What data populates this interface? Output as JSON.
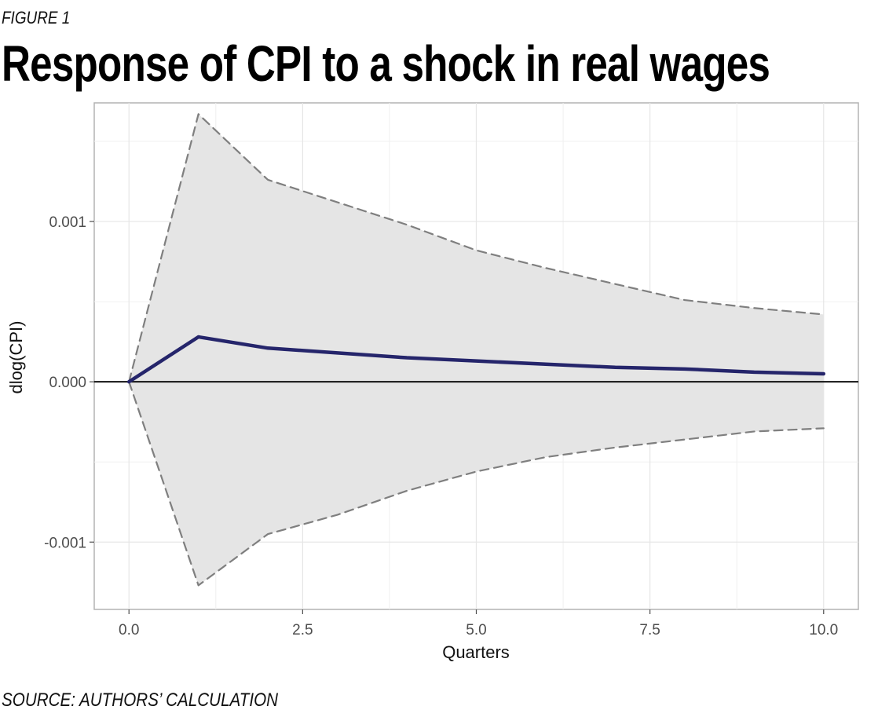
{
  "figure_label": "FIGURE 1",
  "source_note": "SOURCE: AUTHORS’ CALCULATION",
  "chart_data": {
    "type": "line",
    "title": "Response of CPI to a shock in real wages",
    "xlabel": "Quarters",
    "ylabel": "dlog(CPI)",
    "xlim": [
      -0.5,
      10.5
    ],
    "ylim": [
      -0.00142,
      0.00174
    ],
    "x_ticks": [
      0,
      2.5,
      5,
      7.5,
      10
    ],
    "x_tick_labels": [
      "0.0",
      "2.5",
      "5.0",
      "7.5",
      "10.0"
    ],
    "y_ticks": [
      -0.001,
      0,
      0.001
    ],
    "y_tick_labels": [
      "-0.001",
      "0.000",
      "0.001"
    ],
    "grid": true,
    "reference_line_y": 0,
    "x": [
      0,
      1,
      2,
      3,
      4,
      5,
      6,
      7,
      8,
      9,
      10
    ],
    "series": [
      {
        "values": [
          0,
          0.00028,
          0.00021,
          0.00018,
          0.00015,
          0.00013,
          0.00011,
          9e-05,
          8e-05,
          6e-05,
          5e-05
        ],
        "style": "solid",
        "color": "#25256b"
      },
      {
        "values": [
          0,
          0.00167,
          0.00126,
          0.00112,
          0.00098,
          0.00082,
          0.00071,
          0.00061,
          0.00051,
          0.00046,
          0.00042
        ],
        "style": "dashed",
        "color": "#7f7f7f"
      },
      {
        "values": [
          0,
          -0.00127,
          -0.00095,
          -0.00083,
          -0.00068,
          -0.00056,
          -0.00047,
          -0.00041,
          -0.00036,
          -0.00031,
          -0.00029
        ],
        "style": "dashed",
        "color": "#7f7f7f"
      }
    ],
    "band_color": "#e5e5e5"
  }
}
